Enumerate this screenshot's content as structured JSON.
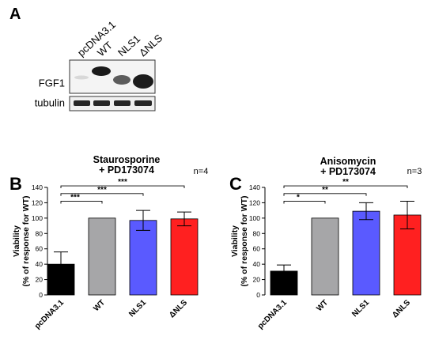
{
  "panel_a": {
    "letter": "A",
    "lanes": [
      "pcDNA3.1",
      "WT",
      "NLS1",
      "ΔNLS"
    ],
    "row_labels": [
      "FGF1",
      "tubulin"
    ]
  },
  "colors": {
    "pcDNA3.1": "#000000",
    "WT": "#a6a6a8",
    "NLS1": "#5a5aff",
    "ΔNLS": "#ff2020"
  },
  "chart_data": [
    {
      "panel": "B",
      "type": "bar",
      "title_lines": [
        "Staurosporine",
        "+ PD173074"
      ],
      "n_label": "n=4",
      "ylabel_lines": [
        "Viability",
        "(% of response for WT)"
      ],
      "categories": [
        "pcDNA3.1",
        "WT",
        "NLS1",
        "ΔNLS"
      ],
      "values": [
        40,
        100,
        97,
        99
      ],
      "errors": [
        16,
        0,
        13,
        9
      ],
      "ylim": [
        0,
        140
      ],
      "yticks": [
        0,
        20,
        40,
        60,
        80,
        100,
        120,
        140
      ],
      "significance": [
        {
          "from": 0,
          "to": 1,
          "label": "***"
        },
        {
          "from": 0,
          "to": 2,
          "label": "***"
        },
        {
          "from": 0,
          "to": 3,
          "label": "***"
        }
      ]
    },
    {
      "panel": "C",
      "type": "bar",
      "title_lines": [
        "Anisomycin",
        "+ PD173074"
      ],
      "n_label": "n=3",
      "ylabel_lines": [
        "Viability",
        "(% of response for WT)"
      ],
      "categories": [
        "pcDNA3.1",
        "WT",
        "NLS1",
        "ΔNLS"
      ],
      "values": [
        31,
        100,
        109,
        104
      ],
      "errors": [
        8,
        0,
        11,
        18
      ],
      "ylim": [
        0,
        140
      ],
      "yticks": [
        0,
        20,
        40,
        60,
        80,
        100,
        120,
        140
      ],
      "significance": [
        {
          "from": 0,
          "to": 1,
          "label": "*"
        },
        {
          "from": 0,
          "to": 2,
          "label": "**"
        },
        {
          "from": 0,
          "to": 3,
          "label": "**"
        }
      ]
    }
  ]
}
